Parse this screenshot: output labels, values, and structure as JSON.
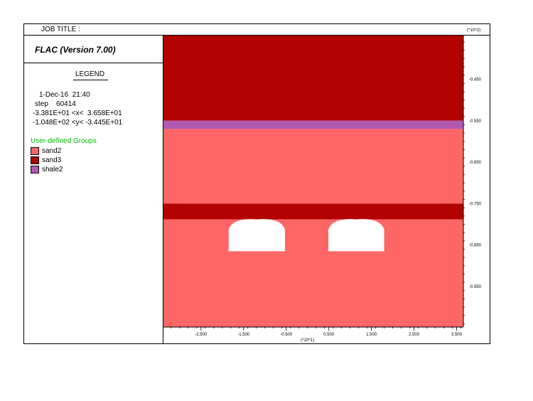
{
  "header": {
    "job_title": "JOB TITLE :",
    "app_title": "FLAC (Version 7.00)"
  },
  "legend": {
    "heading": "LEGEND",
    "date_time": "1-Dec-16  21:40",
    "step": "step    60414",
    "x_range": "-3.381E+01 <x<  3.658E+01",
    "y_range": "-1.048E+02 <y< -3.445E+01",
    "groups_heading": "User-defined Groups",
    "groups": [
      {
        "name": "sand2",
        "color": "#ff6666"
      },
      {
        "name": "sand3",
        "color": "#b30000"
      },
      {
        "name": "shale2",
        "color": "#b15ab1"
      }
    ]
  },
  "axes": {
    "y_exponent": "(*10^2)",
    "x_exponent": "(*10^1)",
    "y_ticks": [
      "-0.450",
      "-0.550",
      "-0.650",
      "-0.750",
      "-0.850",
      "-0.950"
    ],
    "x_ticks": [
      "-2.500",
      "-1.500",
      "-0.500",
      "0.500",
      "1.500",
      "2.500",
      "3.500"
    ]
  },
  "model": {
    "x_min": -33.81,
    "x_max": 36.58,
    "y_min": -104.8,
    "y_max": -34.45,
    "layers": [
      {
        "group": "sand3",
        "y_top": -34.45,
        "y_bottom": -55.0
      },
      {
        "group": "shale2",
        "y_top": -55.0,
        "y_bottom": -57.0
      },
      {
        "group": "sand2",
        "y_top": -57.0,
        "y_bottom": -75.0
      },
      {
        "group": "sand3",
        "y_top": -75.0,
        "y_bottom": -78.8
      },
      {
        "group": "sand2",
        "y_top": -78.8,
        "y_bottom": -104.8
      }
    ],
    "openings": [
      {
        "x_left": -18.5,
        "x_right": -5.3,
        "y_crown": -78.8,
        "y_spring": -81.2,
        "y_floor": -86.5
      },
      {
        "x_left": 4.9,
        "x_right": 18.0,
        "y_crown": -78.8,
        "y_spring": -81.2,
        "y_floor": -86.5
      }
    ]
  }
}
